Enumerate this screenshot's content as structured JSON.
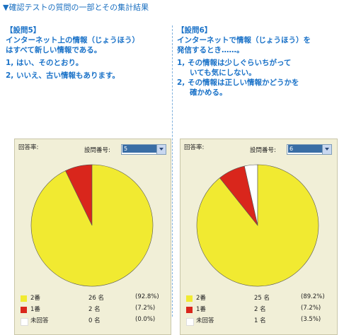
{
  "page_title": "▼確認テストの質問の一部とその集計結果",
  "colors": {
    "yes": "#f1ea31",
    "no": "#d9261c",
    "none": "#ffffff",
    "question_text": "#1a72c8",
    "panel_bg": "#f1efd7"
  },
  "left": {
    "question": {
      "title": "【設問5】",
      "lines": [
        "インターネット上の情報（じょうほう）",
        "はすべて新しい情報である。"
      ],
      "options": [
        "1, はい、そのとおり。",
        "2, いいえ、古い情報もあります。"
      ]
    },
    "panel": {
      "rate_label": "回答率:",
      "qno_label": "設問番号:",
      "select_value": "5",
      "legend": [
        {
          "name": "2番",
          "count": "26 名",
          "percent": "(92.8%)"
        },
        {
          "name": "1番",
          "count": "2 名",
          "percent": "(7.2%)"
        },
        {
          "name": "未回答",
          "count": "0 名",
          "percent": "(0.0%)"
        }
      ]
    },
    "chart_data": {
      "type": "pie",
      "categories": [
        "2番",
        "1番",
        "未回答"
      ],
      "values": [
        92.8,
        7.2,
        0.0
      ]
    }
  },
  "right": {
    "question": {
      "title": "【設問6】",
      "lines": [
        "インターネットで情報（じょうほう）を",
        "発信するとき……。"
      ],
      "options": [
        "1, その情報は少しぐらいちがって",
        "2, その情報は正しい情報かどうかを"
      ],
      "option_continuations": [
        "いても気にしない。",
        "確かめる。"
      ]
    },
    "panel": {
      "rate_label": "回答率:",
      "qno_label": "設問番号:",
      "select_value": "6",
      "legend": [
        {
          "name": "2番",
          "count": "25 名",
          "percent": "(89.2%)"
        },
        {
          "name": "1番",
          "count": "2 名",
          "percent": "(7.2%)"
        },
        {
          "name": "未回答",
          "count": "1 名",
          "percent": "(3.5%)"
        }
      ]
    },
    "chart_data": {
      "type": "pie",
      "categories": [
        "2番",
        "1番",
        "未回答"
      ],
      "values": [
        89.2,
        7.2,
        3.5
      ]
    }
  }
}
